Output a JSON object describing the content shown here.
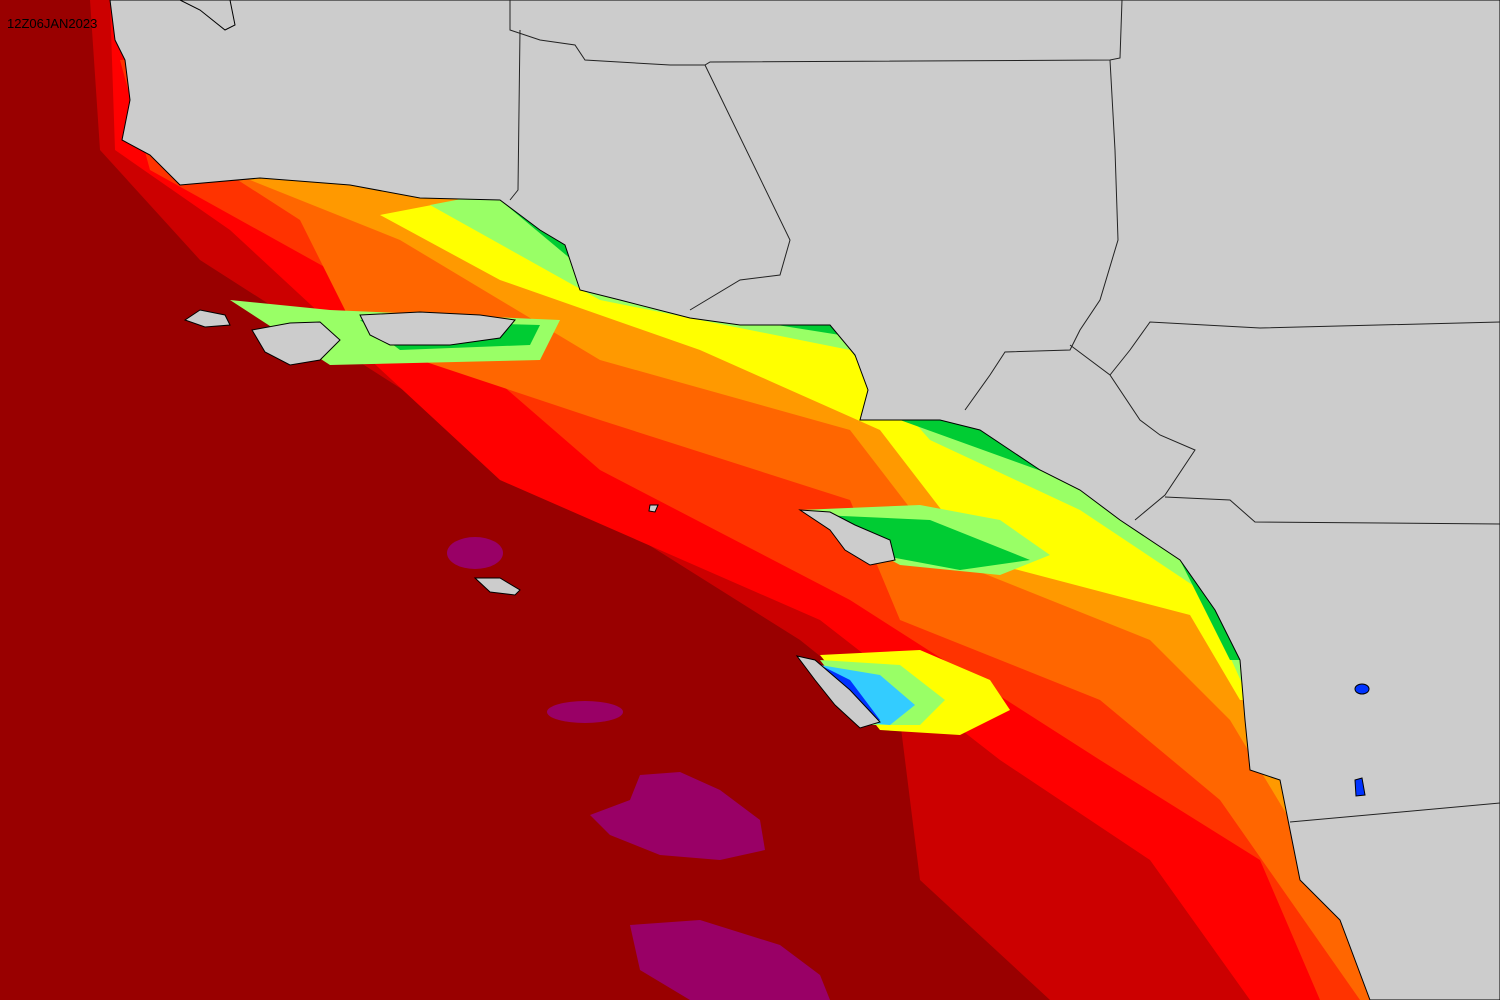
{
  "timestamp": "12Z06JAN2023"
}
